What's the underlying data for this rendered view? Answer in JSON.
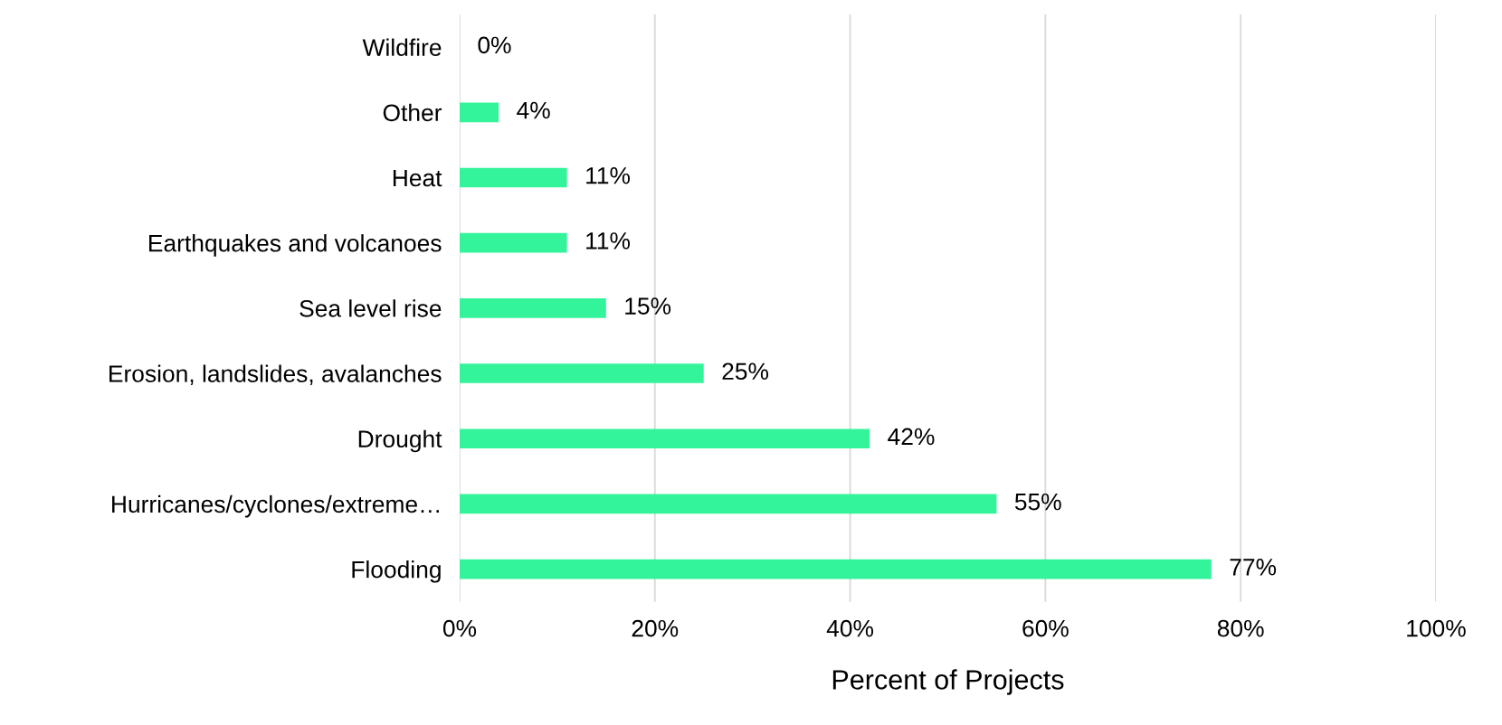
{
  "chart_data": {
    "type": "bar",
    "orientation": "horizontal",
    "xlabel": "Percent of Projects",
    "categories": [
      "Wildfire",
      "Other",
      "Heat",
      "Earthquakes and volcanoes",
      "Sea level rise",
      "Erosion, landslides, avalanches",
      "Drought",
      "Hurricanes/cyclones/extreme…",
      "Flooding"
    ],
    "values": [
      0,
      4,
      11,
      11,
      15,
      25,
      42,
      55,
      77
    ],
    "value_labels": [
      "0%",
      "4%",
      "11%",
      "11%",
      "15%",
      "25%",
      "42%",
      "55%",
      "77%"
    ],
    "color": "#33f49b",
    "xlim": [
      0,
      100
    ],
    "xticks": [
      {
        "value": 0,
        "label": "0%"
      },
      {
        "value": 20,
        "label": "20%"
      },
      {
        "value": 40,
        "label": "40%"
      },
      {
        "value": 60,
        "label": "60%"
      },
      {
        "value": 80,
        "label": "80%"
      },
      {
        "value": 100,
        "label": "100%"
      }
    ],
    "grid": "x"
  }
}
